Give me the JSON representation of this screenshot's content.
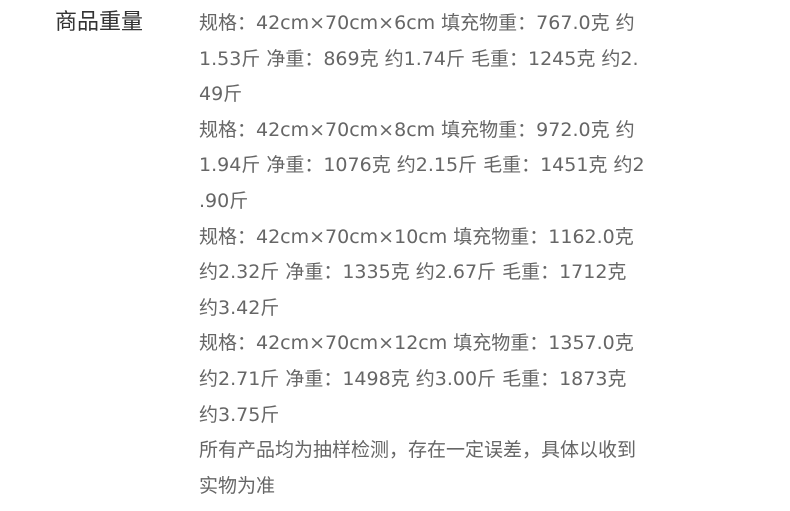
{
  "label": "商品重量",
  "lines": [
    "规格：42cm×70cm×6cm 填充物重：767.0克  约",
    "1.53斤 净重：869克 约1.74斤 毛重：1245克 约2.",
    "49斤",
    "规格：42cm×70cm×8cm 填充物重：972.0克  约",
    "1.94斤 净重：1076克 约2.15斤 毛重：1451克 约2",
    ".90斤",
    "规格：42cm×70cm×10cm 填充物重：1162.0克",
    "约2.32斤 净重：1335克 约2.67斤 毛重：1712克",
    "约3.42斤",
    "规格：42cm×70cm×12cm 填充物重：1357.0克",
    "约2.71斤 净重：1498克 约3.00斤 毛重：1873克",
    "约3.75斤",
    "所有产品均为抽样检测，存在一定误差，具体以收到",
    "实物为准"
  ]
}
